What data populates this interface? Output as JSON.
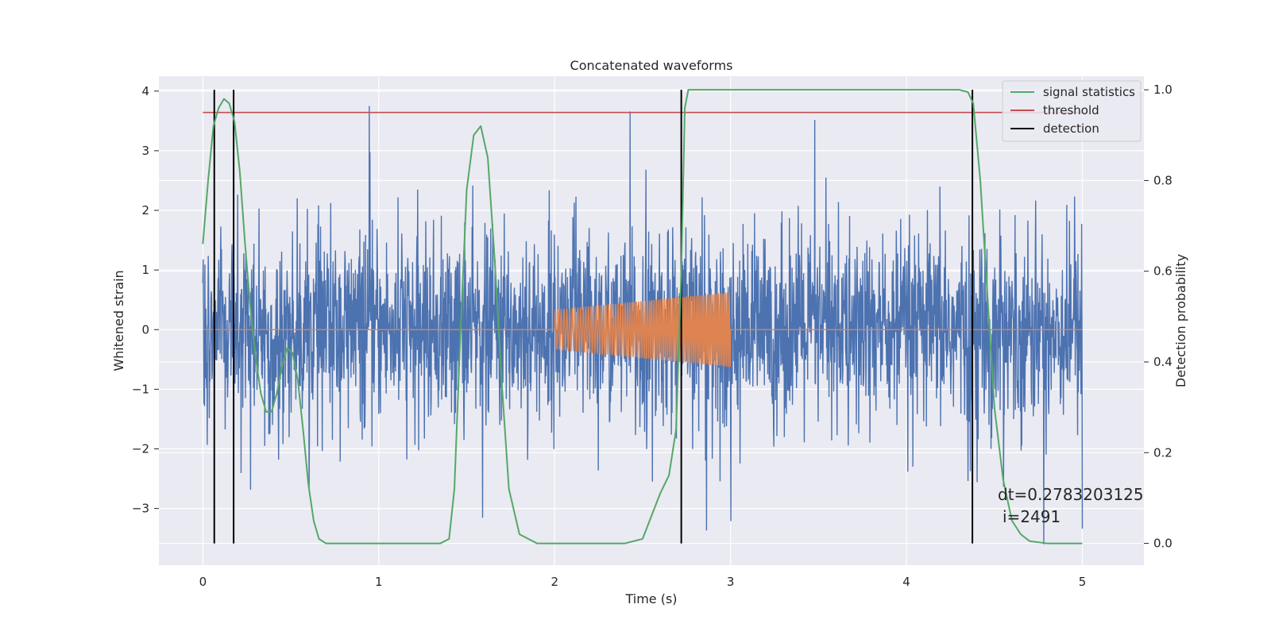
{
  "chart_data": {
    "type": "line",
    "title": "Concatenated waveforms",
    "xlabel": "Time (s)",
    "ylabel": "Whitened strain",
    "y2label": "Detection probability",
    "xlim": [
      -0.25,
      5.35
    ],
    "ylim": [
      -3.95,
      4.25
    ],
    "y2lim": [
      -0.048,
      1.03
    ],
    "x_ticks": [
      0,
      1,
      2,
      3,
      4,
      5
    ],
    "y_ticks": [
      -3,
      -2,
      -1,
      0,
      1,
      2,
      3,
      4
    ],
    "y2_ticks": [
      0.0,
      0.2,
      0.4,
      0.6,
      0.8,
      1.0
    ],
    "x_tick_labels": [
      "0",
      "1",
      "2",
      "3",
      "4",
      "5"
    ],
    "y_tick_labels": [
      "−3",
      "−2",
      "−1",
      "0",
      "1",
      "2",
      "3",
      "4"
    ],
    "y2_tick_labels": [
      "0.0",
      "0.2",
      "0.4",
      "0.6",
      "0.8",
      "1.0"
    ],
    "grid": true,
    "legend_position": "top-right",
    "series": [
      {
        "name": "signal statistics",
        "axis": "right",
        "color": "#55a868",
        "x": [
          0.0,
          0.03,
          0.06,
          0.09,
          0.12,
          0.15,
          0.18,
          0.21,
          0.24,
          0.27,
          0.3,
          0.33,
          0.36,
          0.39,
          0.42,
          0.45,
          0.48,
          0.51,
          0.54,
          0.57,
          0.6,
          0.63,
          0.66,
          0.7,
          0.8,
          1.0,
          1.2,
          1.35,
          1.4,
          1.43,
          1.46,
          1.5,
          1.54,
          1.58,
          1.62,
          1.66,
          1.7,
          1.74,
          1.8,
          1.9,
          2.0,
          2.2,
          2.4,
          2.5,
          2.55,
          2.6,
          2.65,
          2.69,
          2.72,
          2.74,
          2.76,
          2.8,
          3.0,
          3.5,
          4.0,
          4.3,
          4.35,
          4.38,
          4.42,
          4.46,
          4.5,
          4.55,
          4.6,
          4.65,
          4.7,
          4.8,
          4.9,
          5.0
        ],
        "y": [
          0.66,
          0.8,
          0.92,
          0.96,
          0.98,
          0.97,
          0.93,
          0.82,
          0.66,
          0.52,
          0.41,
          0.33,
          0.29,
          0.29,
          0.33,
          0.39,
          0.43,
          0.42,
          0.36,
          0.25,
          0.13,
          0.05,
          0.01,
          0.0,
          0.0,
          0.0,
          0.0,
          0.0,
          0.01,
          0.12,
          0.42,
          0.78,
          0.9,
          0.92,
          0.85,
          0.62,
          0.35,
          0.12,
          0.02,
          0.0,
          0.0,
          0.0,
          0.0,
          0.01,
          0.06,
          0.11,
          0.15,
          0.25,
          0.6,
          0.96,
          1.0,
          1.0,
          1.0,
          1.0,
          1.0,
          1.0,
          0.995,
          0.97,
          0.8,
          0.55,
          0.3,
          0.14,
          0.05,
          0.02,
          0.005,
          0.0,
          0.0,
          0.0
        ]
      },
      {
        "name": "threshold",
        "axis": "right",
        "color": "#c44e52",
        "x": [
          0.0,
          5.0
        ],
        "y": [
          0.95,
          0.95
        ]
      },
      {
        "name": "detection",
        "axis": "right",
        "color": "#000000",
        "x": [
          0.065,
          0.175,
          2.72,
          4.375
        ],
        "y_range": [
          0.0,
          1.0
        ]
      },
      {
        "name": "",
        "axis": "left",
        "color": "#4c72b0",
        "x_range": [
          0.0,
          5.0
        ],
        "approx_std": 0.9,
        "approx_range": [
          -3.6,
          3.85
        ]
      },
      {
        "name": "",
        "axis": "left",
        "color": "#dd8452",
        "x_range": [
          0.0,
          5.0
        ],
        "chirp_x_range": [
          2.0,
          3.0
        ],
        "chirp_amplitude_range": [
          0.33,
          0.63
        ]
      }
    ],
    "annotations": [
      "dt=0.2783203125",
      "i=2491"
    ]
  },
  "colors": {
    "axes_bg": "#eaeaf2",
    "grid": "#ffffff",
    "text": "#262626"
  }
}
